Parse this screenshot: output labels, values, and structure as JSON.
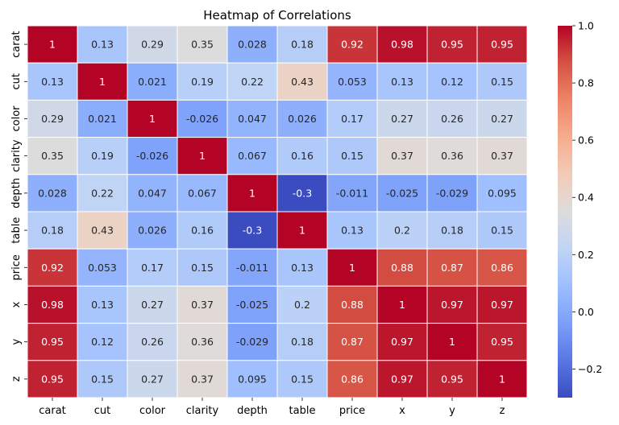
{
  "chart_data": {
    "type": "heatmap",
    "title": "Heatmap of Correlations",
    "colormap": "coolwarm",
    "vlim": [
      -0.3,
      1.0
    ],
    "colorbar_ticks": [
      "-0.2",
      "0.0",
      "0.2",
      "0.4",
      "0.6",
      "0.8",
      "1.0"
    ],
    "colorbar_tick_values": [
      -0.2,
      0.0,
      0.2,
      0.4,
      0.6,
      0.8,
      1.0
    ],
    "x_labels": [
      "carat",
      "cut",
      "color",
      "clarity",
      "depth",
      "table",
      "price",
      "x",
      "y",
      "z"
    ],
    "y_labels": [
      "carat",
      "cut",
      "color",
      "clarity",
      "depth",
      "table",
      "price",
      "x",
      "y",
      "z"
    ],
    "values": [
      [
        "1",
        "0.13",
        "0.29",
        "0.35",
        "0.028",
        "0.18",
        "0.92",
        "0.98",
        "0.95",
        "0.95"
      ],
      [
        "0.13",
        "1",
        "0.021",
        "0.19",
        "0.22",
        "0.43",
        "0.053",
        "0.13",
        "0.12",
        "0.15"
      ],
      [
        "0.29",
        "0.021",
        "1",
        "-0.026",
        "0.047",
        "0.026",
        "0.17",
        "0.27",
        "0.26",
        "0.27"
      ],
      [
        "0.35",
        "0.19",
        "-0.026",
        "1",
        "0.067",
        "0.16",
        "0.15",
        "0.37",
        "0.36",
        "0.37"
      ],
      [
        "0.028",
        "0.22",
        "0.047",
        "0.067",
        "1",
        "-0.3",
        "-0.011",
        "-0.025",
        "-0.029",
        "0.095"
      ],
      [
        "0.18",
        "0.43",
        "0.026",
        "0.16",
        "-0.3",
        "1",
        "0.13",
        "0.2",
        "0.18",
        "0.15"
      ],
      [
        "0.92",
        "0.053",
        "0.17",
        "0.15",
        "-0.011",
        "0.13",
        "1",
        "0.88",
        "0.87",
        "0.86"
      ],
      [
        "0.98",
        "0.13",
        "0.27",
        "0.37",
        "-0.025",
        "0.2",
        "0.88",
        "1",
        "0.97",
        "0.97"
      ],
      [
        "0.95",
        "0.12",
        "0.26",
        "0.36",
        "-0.029",
        "0.18",
        "0.87",
        "0.97",
        "1",
        "0.95"
      ],
      [
        "0.95",
        "0.15",
        "0.27",
        "0.37",
        "0.095",
        "0.15",
        "0.86",
        "0.97",
        "0.95",
        "1"
      ]
    ],
    "annotated": true,
    "grid_line_color": "#ffffff"
  }
}
